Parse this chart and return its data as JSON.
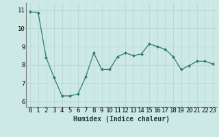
{
  "x": [
    0,
    1,
    2,
    3,
    4,
    5,
    6,
    7,
    8,
    9,
    10,
    11,
    12,
    13,
    14,
    15,
    16,
    17,
    18,
    19,
    20,
    21,
    22,
    23
  ],
  "y": [
    10.9,
    10.85,
    8.4,
    7.3,
    6.3,
    6.3,
    6.4,
    7.35,
    8.65,
    7.75,
    7.75,
    8.45,
    8.65,
    8.5,
    8.6,
    9.15,
    9.0,
    8.85,
    8.45,
    7.75,
    7.95,
    8.2,
    8.2,
    8.05
  ],
  "line_color": "#2d7d6e",
  "bg_color": "#cce9e5",
  "grid_color": "#b8d8d4",
  "xlabel": "Humidex (Indice chaleur)",
  "xlabel_fontsize": 7,
  "tick_fontsize": 6.5,
  "ylim": [
    5.7,
    11.4
  ],
  "xlim": [
    -0.5,
    23.5
  ],
  "yticks": [
    6,
    7,
    8,
    9,
    10,
    11
  ],
  "xticks": [
    0,
    1,
    2,
    3,
    4,
    5,
    6,
    7,
    8,
    9,
    10,
    11,
    12,
    13,
    14,
    15,
    16,
    17,
    18,
    19,
    20,
    21,
    22,
    23
  ]
}
